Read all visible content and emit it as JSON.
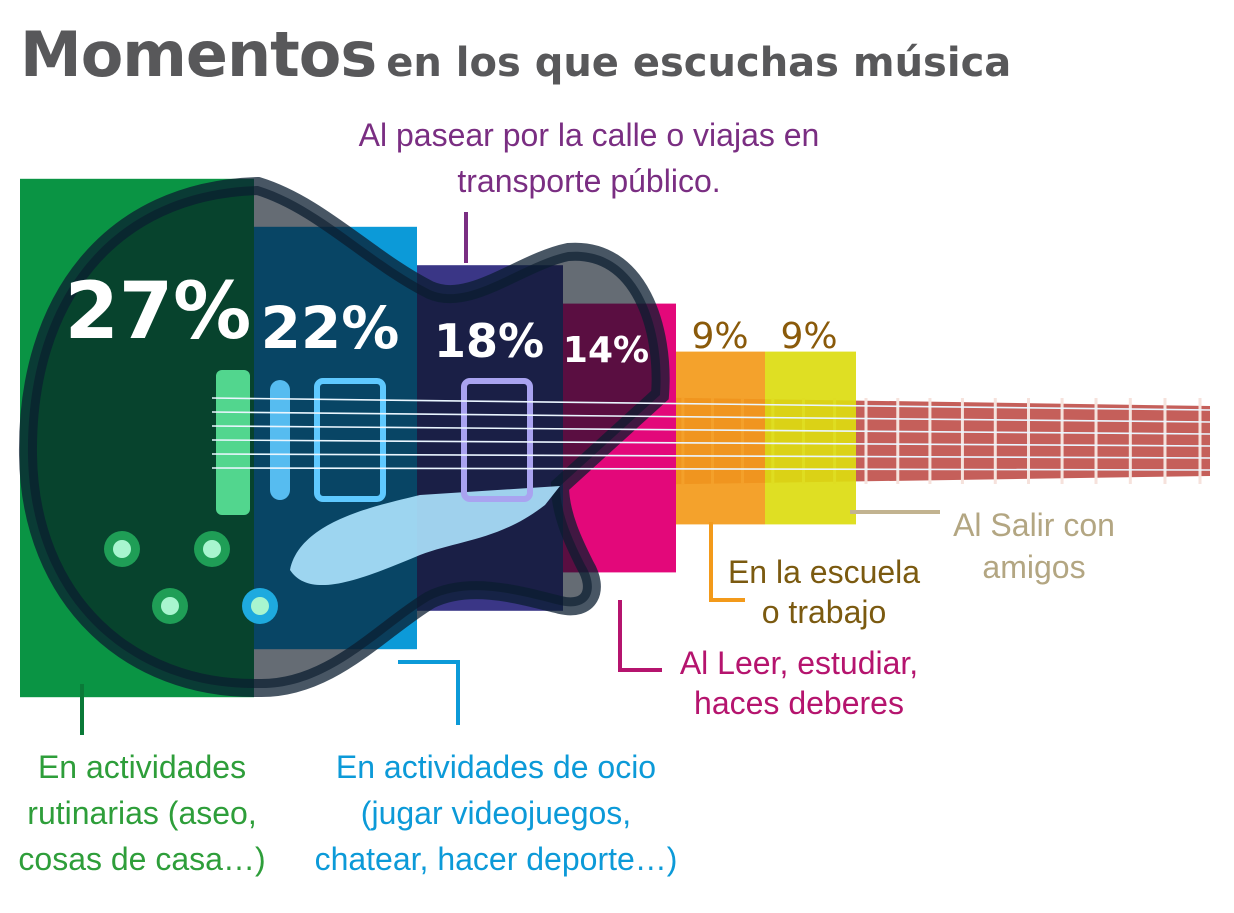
{
  "title": {
    "main": "Momentos",
    "sub": "en los que escuchas música"
  },
  "chart_data": {
    "type": "bar",
    "title": "Momentos en los que escuchas música",
    "categories": [
      "En actividades rutinarias (aseo, cosas de casa…)",
      "En actividades de ocio (jugar videojuegos, chatear, hacer deporte…)",
      "Al pasear por la calle o viajas en transporte público.",
      "Al Leer, estudiar, haces deberes",
      "En la escuela o trabajo",
      "Al Salir con amigos"
    ],
    "values": [
      27,
      22,
      18,
      14,
      9,
      9
    ],
    "unit": "%",
    "series": [
      {
        "value_labels": [
          "27%",
          "22%",
          "18%",
          "14%",
          "9%",
          "9%"
        ],
        "category_label_lines": [
          [
            "En actividades",
            "rutinarias (aseo,",
            "cosas de casa…)"
          ],
          [
            "En actividades de ocio",
            "(jugar videojuegos,",
            "chatear, hacer deporte…)"
          ],
          [
            "Al pasear por la calle o viajas en",
            "transporte público."
          ],
          [
            "Al Leer, estudiar,",
            "haces deberes"
          ],
          [
            "En la escuela",
            "o trabajo"
          ],
          [
            "Al Salir con",
            "amigos"
          ]
        ]
      }
    ],
    "colors": {
      "bars": [
        "#0a9444",
        "#0c9ad8",
        "#3a3686",
        "#e3087a",
        "#f39a1a",
        "#dcdc10"
      ],
      "value_text": [
        "#ffffff",
        "#ffffff",
        "#ffffff",
        "#ffffff",
        "#8a5a0a",
        "#8a5a0a"
      ],
      "label_text": [
        "#2e9e3a",
        "#0c9ad8",
        "#7a2e82",
        "#b5146e",
        "#7b5a10",
        "#b3a682"
      ],
      "leader": [
        "#0a7a38",
        "#0c9ad8",
        "#7a2e82",
        "#b5146e",
        "#f39a1a",
        "#c2b390"
      ],
      "title": "#58585a",
      "guitar_body_outline": "#0d1f33",
      "neck": "#c55f5a"
    },
    "grid": false,
    "legend": "none"
  }
}
